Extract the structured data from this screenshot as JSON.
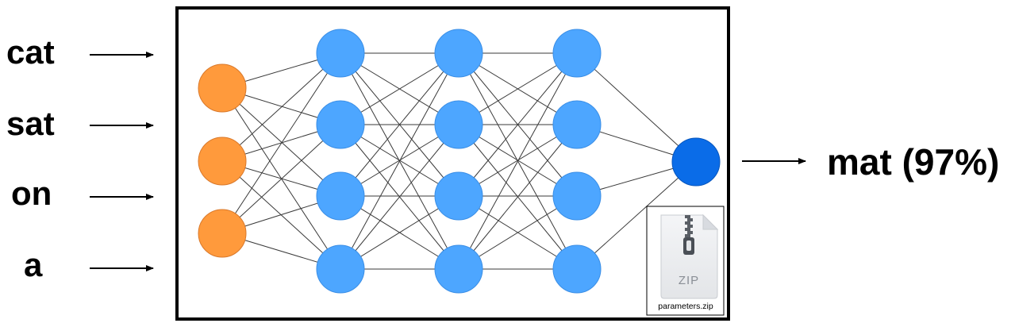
{
  "inputs": {
    "words": [
      "cat",
      "sat",
      "on",
      "a"
    ]
  },
  "output": {
    "label": "mat (97%)"
  },
  "network": {
    "layers": [
      3,
      4,
      4,
      4,
      1
    ],
    "colors": {
      "input_node": "#FF9A3C",
      "input_stroke": "#D9782A",
      "hidden_node": "#4DA6FF",
      "hidden_stroke": "#3A8EE6",
      "output_node": "#0A6CE8",
      "output_stroke": "#0756BD",
      "edge": "#3a3a3a",
      "frame": "#000000"
    }
  },
  "zip_file": {
    "icon": "zip-archive-icon",
    "type_label": "ZIP",
    "filename": "parameters.zip"
  }
}
